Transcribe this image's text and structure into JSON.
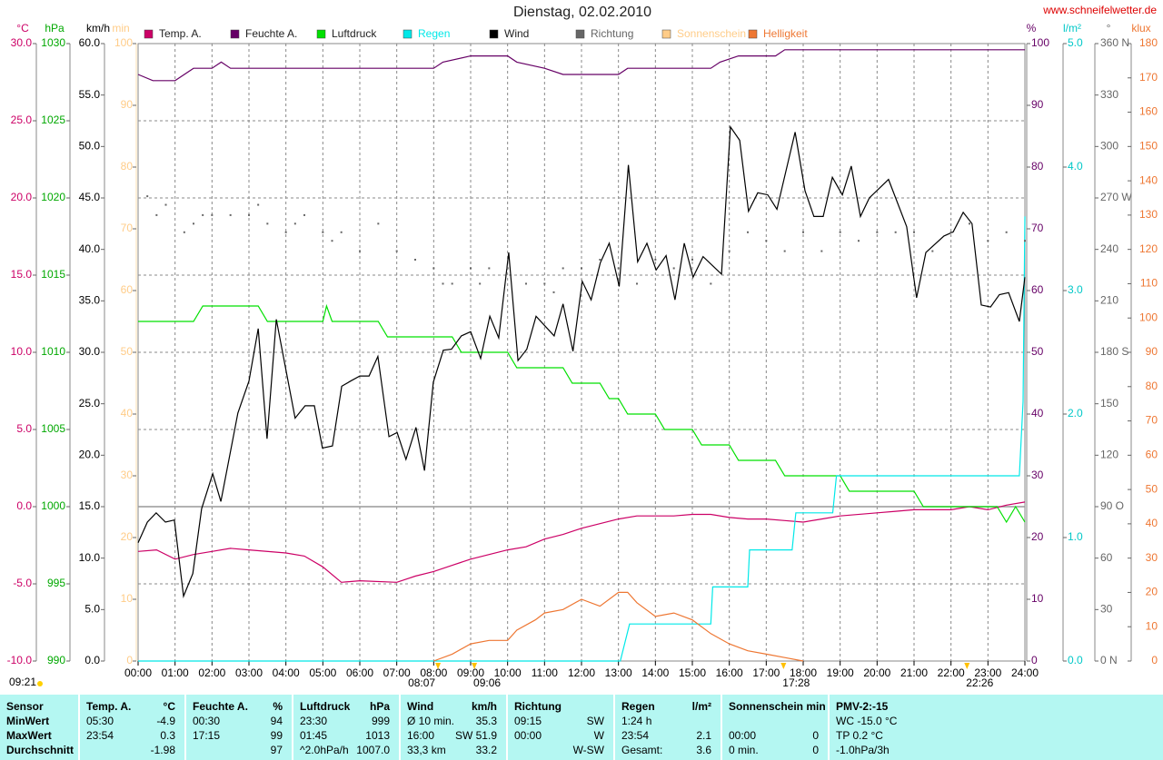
{
  "chart_data": {
    "type": "line",
    "title": "Dienstag, 02.02.2010",
    "source": "www.schneifelwetter.de",
    "footnote": "09:21",
    "xlim": [
      0,
      24
    ],
    "xticks": [
      {
        "value": 0,
        "label": "00:00"
      },
      {
        "value": 1,
        "label": "01:00"
      },
      {
        "value": 2,
        "label": "02:00"
      },
      {
        "value": 3,
        "label": "03:00"
      },
      {
        "value": 4,
        "label": "04:00"
      },
      {
        "value": 5,
        "label": "05:00"
      },
      {
        "value": 6,
        "label": "06:00"
      },
      {
        "value": 7,
        "label": "07:00"
      },
      {
        "value": 8,
        "label": "08:00"
      },
      {
        "value": 9,
        "label": "09:00"
      },
      {
        "value": 10,
        "label": "10:00"
      },
      {
        "value": 11,
        "label": "11:00"
      },
      {
        "value": 12,
        "label": "12:00"
      },
      {
        "value": 13,
        "label": "13:00"
      },
      {
        "value": 14,
        "label": "14:00"
      },
      {
        "value": 15,
        "label": "15:00"
      },
      {
        "value": 16,
        "label": "16:00"
      },
      {
        "value": 17,
        "label": "17:00"
      },
      {
        "value": 18,
        "label": "18:00"
      },
      {
        "value": 19,
        "label": "19:00"
      },
      {
        "value": 20,
        "label": "20:00"
      },
      {
        "value": 21,
        "label": "21:00"
      },
      {
        "value": 22,
        "label": "22:00"
      },
      {
        "value": 23,
        "label": "23:00"
      },
      {
        "value": 24,
        "label": "24:00"
      }
    ],
    "grid": true,
    "axes": [
      {
        "unit": "°C",
        "color": "#cc0066",
        "lim": [
          -10,
          30
        ],
        "ticks": [
          {
            "value": -10,
            "label": "-10.0"
          },
          {
            "value": -5,
            "label": "-5.0"
          },
          {
            "value": 0,
            "label": "0.0"
          },
          {
            "value": 5,
            "label": "5.0"
          },
          {
            "value": 10,
            "label": "10.0"
          },
          {
            "value": 15,
            "label": "15.0"
          },
          {
            "value": 20,
            "label": "20.0"
          },
          {
            "value": 25,
            "label": "25.0"
          },
          {
            "value": 30,
            "label": "30.0"
          }
        ]
      },
      {
        "unit": "hPa",
        "color": "#00a800",
        "lim": [
          990,
          1030
        ],
        "ticks": [
          990,
          995,
          1000,
          1005,
          1010,
          1015,
          1020,
          1025,
          1030
        ]
      },
      {
        "unit": "km/h",
        "color": "#000000",
        "lim": [
          0,
          60
        ],
        "ticks": [
          {
            "value": 0,
            "label": "0.0"
          },
          {
            "value": 5,
            "label": "5.0"
          },
          {
            "value": 10,
            "label": "10.0"
          },
          {
            "value": 15,
            "label": "15.0"
          },
          {
            "value": 20,
            "label": "20.0"
          },
          {
            "value": 25,
            "label": "25.0"
          },
          {
            "value": 30,
            "label": "30.0"
          },
          {
            "value": 35,
            "label": "35.0"
          },
          {
            "value": 40,
            "label": "40.0"
          },
          {
            "value": 45,
            "label": "45.0"
          },
          {
            "value": 50,
            "label": "50.0"
          },
          {
            "value": 55,
            "label": "55.0"
          },
          {
            "value": 60,
            "label": "60.0"
          }
        ]
      },
      {
        "unit": "min",
        "color": "#ffcc88",
        "lim": [
          0,
          100
        ],
        "ticks": [
          0,
          10,
          20,
          30,
          40,
          50,
          60,
          70,
          80,
          90,
          100
        ]
      },
      {
        "unit": "%",
        "color": "#660066",
        "lim": [
          0,
          100
        ],
        "ticks": [
          0,
          10,
          20,
          30,
          40,
          50,
          60,
          70,
          80,
          90,
          100
        ]
      },
      {
        "unit": "l/m²",
        "color": "#00c8c8",
        "lim": [
          0,
          5
        ],
        "ticks": [
          {
            "value": 0,
            "label": "0.0"
          },
          {
            "value": 1,
            "label": "1.0"
          },
          {
            "value": 2,
            "label": "2.0"
          },
          {
            "value": 3,
            "label": "3.0"
          },
          {
            "value": 4,
            "label": "4.0"
          },
          {
            "value": 5,
            "label": "5.0"
          }
        ]
      },
      {
        "unit": "°",
        "color": "#666666",
        "lim": [
          0,
          360
        ],
        "ticks": [
          {
            "value": 0,
            "label": "0 N"
          },
          30,
          60,
          {
            "value": 90,
            "label": "90 O"
          },
          120,
          150,
          {
            "value": 180,
            "label": "180 S"
          },
          210,
          240,
          {
            "value": 270,
            "label": "270 W"
          },
          300,
          330,
          {
            "value": 360,
            "label": "360 N"
          }
        ]
      },
      {
        "unit": "klux",
        "color": "#ee7733",
        "lim": [
          0,
          180
        ],
        "ticks": [
          0,
          10,
          20,
          30,
          40,
          50,
          60,
          70,
          80,
          90,
          100,
          110,
          120,
          130,
          140,
          150,
          160,
          170,
          180
        ]
      }
    ],
    "series": [
      {
        "name": "Temp. A.",
        "color": "#cc0066",
        "axis": 0,
        "x": [
          0,
          0.5,
          1,
          1.5,
          2,
          2.5,
          3,
          4,
          4.5,
          5,
          5.5,
          6,
          7,
          7.5,
          8,
          8.5,
          9,
          9.5,
          10,
          10.5,
          11,
          11.5,
          12,
          12.5,
          13,
          13.5,
          14.5,
          15,
          15.5,
          16,
          16.5,
          17,
          17.5,
          18,
          18.5,
          19,
          20,
          20.5,
          21,
          22,
          22.5,
          23,
          23.5,
          24
        ],
        "values": [
          -2.9,
          -2.8,
          -3.4,
          -3.1,
          -2.9,
          -2.7,
          -2.8,
          -3.0,
          -3.2,
          -3.9,
          -4.9,
          -4.8,
          -4.9,
          -4.5,
          -4.2,
          -3.8,
          -3.4,
          -3.1,
          -2.8,
          -2.6,
          -2.1,
          -1.8,
          -1.4,
          -1.1,
          -0.8,
          -0.6,
          -0.6,
          -0.5,
          -0.5,
          -0.7,
          -0.8,
          -0.8,
          -0.9,
          -1.0,
          -0.8,
          -0.6,
          -0.4,
          -0.3,
          -0.2,
          -0.2,
          0,
          -0.2,
          0.1,
          0.3
        ]
      },
      {
        "name": "Feuchte A.",
        "color": "#660066",
        "axis": 4,
        "x": [
          0,
          0.4,
          1,
          1.5,
          2,
          2.25,
          2.5,
          8,
          8.25,
          9,
          10,
          10.25,
          11,
          11.5,
          13,
          13.25,
          15.5,
          15.75,
          16.25,
          17.25,
          17.5,
          24
        ],
        "values": [
          95,
          94,
          94,
          96,
          96,
          97,
          96,
          96,
          97,
          98,
          98,
          97,
          96,
          95,
          95,
          96,
          96,
          97,
          98,
          98,
          99,
          99
        ]
      },
      {
        "name": "Luftdruck",
        "color": "#00e000",
        "axis": 1,
        "x": [
          0,
          1.5,
          1.75,
          3.25,
          3.5,
          5,
          5.1,
          5.25,
          5.5,
          6.5,
          6.75,
          8.5,
          8.75,
          10,
          10.25,
          11.5,
          11.75,
          12.5,
          12.75,
          13,
          13.25,
          14,
          14.25,
          15,
          15.25,
          16,
          16.25,
          17.25,
          17.5,
          19,
          19.25,
          21,
          21.25,
          23.25,
          23.5,
          23.75,
          24
        ],
        "values": [
          1012,
          1012,
          1013,
          1013,
          1012,
          1012,
          1013,
          1012,
          1012,
          1012,
          1011,
          1011,
          1010,
          1010,
          1009,
          1009,
          1008,
          1008,
          1007,
          1007,
          1006,
          1006,
          1005,
          1005,
          1004,
          1004,
          1003,
          1003,
          1002,
          1002,
          1001,
          1001,
          1000,
          1000,
          999,
          1000,
          999
        ]
      },
      {
        "name": "Regen",
        "color": "#00e8e8",
        "axis": 5,
        "x": [
          0,
          13.05,
          13.3,
          15.5,
          15.55,
          16.5,
          16.55,
          17.7,
          17.8,
          18.8,
          18.9,
          23.85,
          23.95,
          24
        ],
        "values": [
          0,
          0,
          0.3,
          0.3,
          0.6,
          0.6,
          0.9,
          0.9,
          1.2,
          1.2,
          1.5,
          1.5,
          2.1,
          3.6
        ]
      },
      {
        "name": "Wind",
        "color": "#000000",
        "axis": 2,
        "x": [
          0,
          0.25,
          0.49,
          0.74,
          0.98,
          1.23,
          1.48,
          1.72,
          2.02,
          2.24,
          2.7,
          3,
          3.25,
          3.49,
          3.74,
          4.25,
          4.52,
          4.77,
          4.99,
          5.26,
          5.51,
          5.75,
          6,
          6.25,
          6.49,
          6.79,
          7.01,
          7.25,
          7.52,
          7.75,
          7.99,
          8.26,
          8.48,
          8.75,
          9,
          9.27,
          9.52,
          9.76,
          10.03,
          10.28,
          10.52,
          10.77,
          11.26,
          11.5,
          11.77,
          12.02,
          12.26,
          12.51,
          12.75,
          13.02,
          13.27,
          13.52,
          13.77,
          14.02,
          14.29,
          14.53,
          14.78,
          15.02,
          15.29,
          15.79,
          16.03,
          16.28,
          16.52,
          16.77,
          17.04,
          17.29,
          17.78,
          18.05,
          18.29,
          18.54,
          18.79,
          19.06,
          19.3,
          19.55,
          19.79,
          20.31,
          20.8,
          21.07,
          21.32,
          21.81,
          22.06,
          22.33,
          22.57,
          22.82,
          23.07,
          23.31,
          23.56,
          23.85,
          24
        ],
        "values": [
          11.5,
          13.5,
          14.4,
          13.5,
          13.7,
          6.3,
          8.5,
          14.8,
          18.2,
          15.5,
          24.1,
          27.2,
          32.3,
          21.6,
          33.2,
          23.6,
          24.8,
          24.8,
          20.7,
          20.9,
          26.7,
          27.2,
          27.7,
          27.7,
          29.6,
          21.8,
          22.2,
          19.6,
          22.7,
          18.5,
          27.1,
          30.2,
          30.3,
          31.6,
          32.0,
          29.4,
          33.5,
          31.4,
          39.7,
          29.2,
          30.3,
          33.5,
          31.6,
          34.7,
          30.1,
          36.9,
          35.1,
          38.7,
          40.6,
          36.4,
          48.2,
          38.8,
          40.6,
          38.0,
          39.4,
          35.1,
          40.6,
          37.3,
          39.3,
          37.6,
          51.9,
          50.6,
          43.7,
          45.5,
          45.3,
          43.9,
          51.4,
          45.7,
          43.2,
          43.2,
          47.0,
          45.3,
          48.1,
          43.2,
          45.0,
          46.8,
          42.2,
          35.3,
          39.7,
          41.3,
          41.7,
          43.6,
          42.5,
          34.6,
          34.4,
          35.6,
          35.8,
          33.0,
          37.3
        ]
      },
      {
        "name": "Richtung",
        "color": "#666666",
        "axis": 6,
        "type": "scatter",
        "x": [
          0.25,
          0.5,
          0.75,
          1.25,
          1.5,
          1.75,
          2,
          2.5,
          3,
          3.25,
          3.5,
          4,
          4.25,
          4.5,
          5,
          5.25,
          5.5,
          6,
          6.5,
          7,
          7.5,
          8,
          8.25,
          8.5,
          9,
          9.25,
          9.5,
          10,
          10.5,
          11,
          11.25,
          11.5,
          12,
          12.5,
          13,
          13.5,
          14,
          14.5,
          15,
          15.5,
          16,
          16.5,
          17,
          17.5,
          18,
          18.5,
          19,
          19.5,
          20,
          20.5,
          21,
          21.5,
          22,
          22.5,
          23,
          23.5,
          24
        ],
        "values": [
          271,
          260,
          266,
          250,
          255,
          260,
          260,
          260,
          260,
          266,
          255,
          250,
          255,
          260,
          250,
          245,
          250,
          239,
          255,
          239,
          234,
          229,
          220,
          220,
          229,
          220,
          229,
          229,
          220,
          220,
          215,
          229,
          229,
          234,
          229,
          220,
          234,
          229,
          234,
          220,
          239,
          250,
          245,
          239,
          250,
          239,
          250,
          245,
          250,
          250,
          250,
          239,
          250,
          255,
          245,
          250,
          245
        ]
      },
      {
        "name": "Sonnenschein",
        "color": "#ffcc88",
        "axis": 3,
        "x": [],
        "values": []
      },
      {
        "name": "Helligkeit",
        "color": "#ee7733",
        "axis": 7,
        "x": [
          8,
          8.5,
          9,
          9.5,
          10,
          10.25,
          10.75,
          11,
          11.5,
          12,
          12.5,
          13,
          13.25,
          13.5,
          14,
          14.5,
          15,
          15.5,
          16,
          16.5,
          17,
          17.5,
          18
        ],
        "values": [
          0,
          2,
          5,
          6,
          6,
          9,
          12,
          14,
          15,
          18,
          16,
          20,
          20,
          17,
          13,
          14,
          12,
          8,
          5,
          3,
          2,
          1,
          0
        ]
      }
    ],
    "annotations": [
      {
        "x": 8.117,
        "label": "08:07"
      },
      {
        "x": 9.1,
        "label": "09:06"
      },
      {
        "x": 17.467,
        "label": "17:28"
      },
      {
        "x": 22.433,
        "label": "22:26"
      }
    ]
  },
  "stats": {
    "columns": [
      {
        "title": "Sensor",
        "rows": [
          [
            "MinWert"
          ],
          [
            "MaxWert"
          ],
          [
            "Durchschnitt"
          ]
        ]
      },
      {
        "title": "Temp. A.",
        "unit": "°C",
        "rows": [
          [
            "05:30",
            "-4.9"
          ],
          [
            "23:54",
            "0.3"
          ],
          [
            "-1.98"
          ]
        ]
      },
      {
        "title": "Feuchte A.",
        "unit": "%",
        "rows": [
          [
            "00:30",
            "94"
          ],
          [
            "17:15",
            "99"
          ],
          [
            "97"
          ]
        ]
      },
      {
        "title": "Luftdruck",
        "unit": "hPa",
        "rows": [
          [
            "23:30",
            "999"
          ],
          [
            "01:45",
            "1013"
          ],
          [
            "^2.0hPa/h",
            "1007.0"
          ]
        ]
      },
      {
        "title": "Wind",
        "unit": "km/h",
        "rows": [
          [
            "Ø 10 min.",
            "35.3"
          ],
          [
            "16:00",
            "SW 51.9"
          ],
          [
            "33,3 km",
            "33.2"
          ]
        ]
      },
      {
        "title": "Richtung",
        "rows": [
          [
            "09:15",
            "SW"
          ],
          [
            "00:00",
            "W"
          ],
          [
            "W-SW"
          ]
        ]
      },
      {
        "title": "Regen",
        "unit": "l/m²",
        "rows": [
          [
            "1:24 h"
          ],
          [
            "23:54",
            "2.1"
          ],
          [
            "Gesamt:",
            "3.6"
          ]
        ]
      },
      {
        "title": "Sonnenschein min",
        "rows": [
          [],
          [
            "00:00",
            "0"
          ],
          [
            "0 min.",
            "0"
          ]
        ]
      },
      {
        "title": "PMV-2:-15",
        "rows": [
          [
            "WC -15.0 °C"
          ],
          [
            "TP 0.2 °C"
          ],
          [
            "-1.0hPa/3h"
          ]
        ]
      }
    ]
  }
}
